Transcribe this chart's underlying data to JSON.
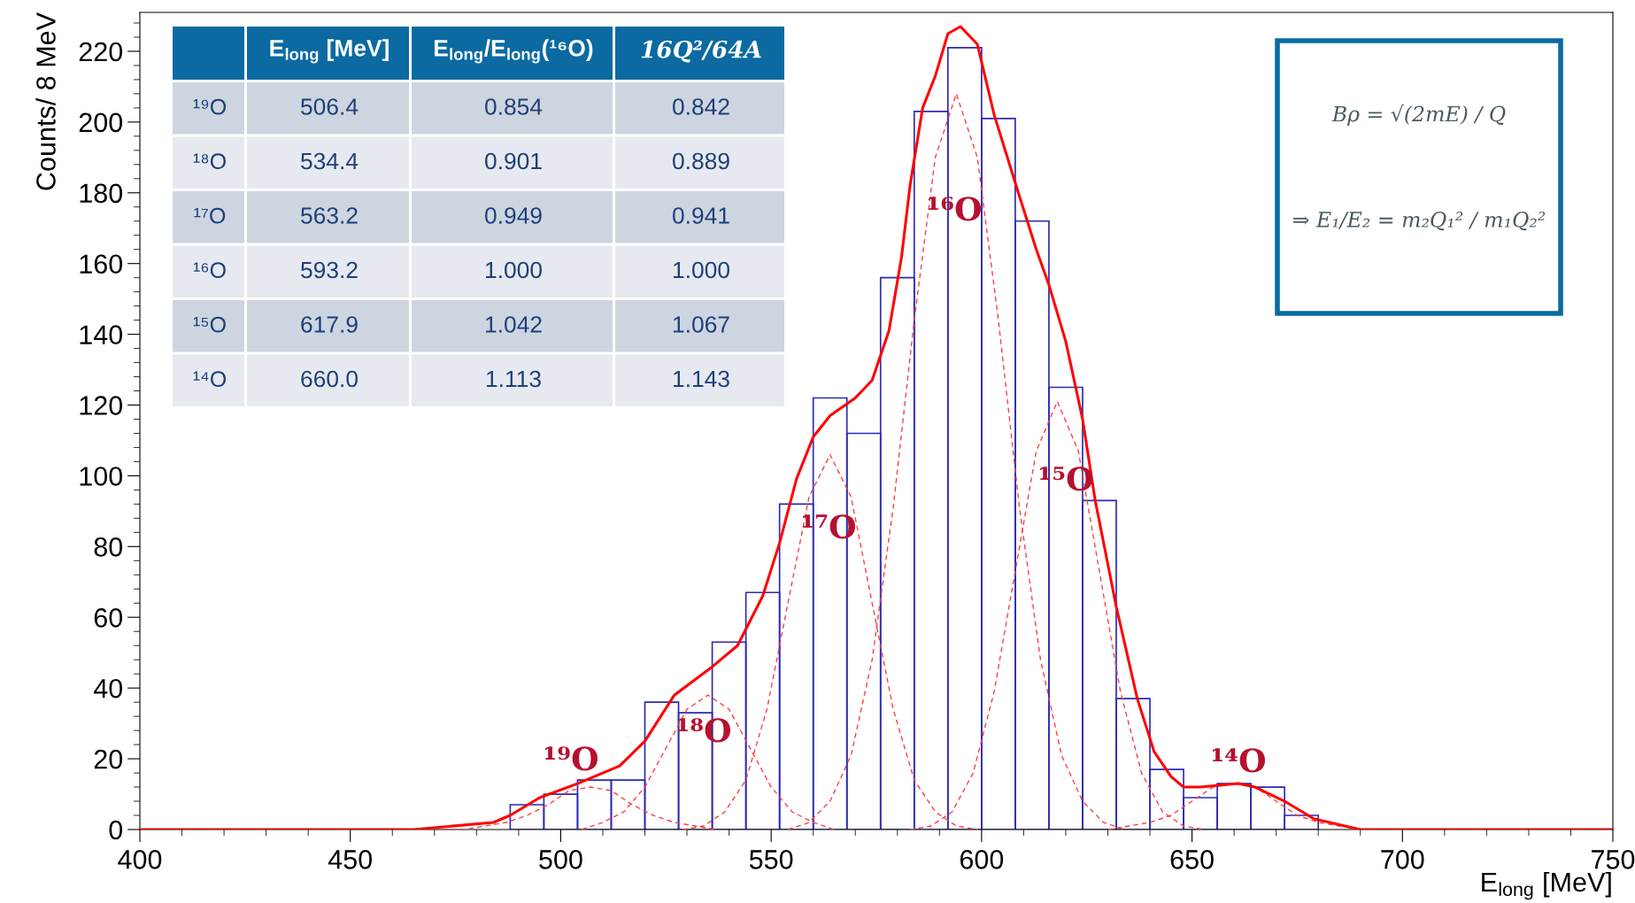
{
  "chart_data": {
    "type": "histogram",
    "xlabel": "E$_{long}$ [MeV]",
    "ylabel": "Counts/ 8 MeV",
    "bins": [
      488,
      496,
      504,
      512,
      520,
      528,
      536,
      544,
      552,
      560,
      568,
      576,
      584,
      592,
      600,
      608,
      616,
      624,
      632,
      640,
      648,
      656,
      664,
      672,
      680
    ],
    "series": [
      {
        "color": "#2a2ab4",
        "values": [
          7,
          10,
          14,
          14,
          36,
          33,
          53,
          67,
          92,
          122,
          112,
          156,
          203,
          221,
          201,
          172,
          125,
          93,
          37,
          17,
          9,
          13,
          12,
          4
        ]
      },
      {
        "type": "line",
        "color": "#ff0000",
        "line_style": "solid",
        "x": [
          400,
          465,
          484,
          488,
          495,
          504,
          514,
          520,
          527,
          536,
          542,
          548,
          552,
          556,
          560,
          564,
          570,
          574,
          578,
          581,
          583,
          586,
          589,
          592,
          595,
          599,
          603,
          609,
          613,
          616,
          620,
          624,
          627,
          632,
          637,
          641,
          645,
          648,
          652,
          661,
          665,
          672,
          679,
          690,
          750
        ],
        "values": [
          0,
          0,
          2,
          4,
          9,
          13,
          18,
          25,
          38,
          46,
          52,
          66,
          81,
          99,
          111,
          117,
          122,
          127,
          141,
          162,
          182,
          204,
          213,
          225,
          227,
          222,
          202,
          179,
          164,
          154,
          138,
          116,
          93,
          63,
          37,
          22,
          15,
          12,
          12,
          13,
          12,
          8,
          3,
          0,
          0
        ]
      },
      {
        "type": "line",
        "color": "#ff4040",
        "line_style": "dashed",
        "x": [
          472,
          477,
          482,
          487,
          492,
          497,
          502,
          507,
          512,
          517,
          522,
          527,
          532,
          537
        ],
        "values": [
          0,
          0,
          1,
          2,
          4,
          7,
          11,
          12,
          11,
          7,
          4,
          2,
          1,
          0
        ]
      },
      {
        "type": "line",
        "color": "#ff4040",
        "line_style": "dashed",
        "x": [
          505,
          510,
          515,
          520,
          525,
          530,
          535,
          540,
          545,
          550,
          555,
          560,
          565
        ],
        "values": [
          0,
          2,
          5,
          12,
          23,
          34,
          38,
          34,
          23,
          12,
          5,
          2,
          0
        ]
      },
      {
        "type": "line",
        "color": "#ff4040",
        "line_style": "dashed",
        "x": [
          529,
          534,
          539,
          544,
          549,
          554,
          559,
          564,
          569,
          574,
          579,
          584,
          589,
          594,
          599
        ],
        "values": [
          0,
          1,
          5,
          14,
          34,
          64,
          94,
          106,
          94,
          64,
          34,
          14,
          5,
          1,
          0
        ]
      },
      {
        "type": "line",
        "color": "#ff4040",
        "line_style": "dashed",
        "x": [
          554,
          559,
          564,
          569,
          574,
          579,
          584,
          589,
          594,
          599,
          604,
          609,
          614,
          619,
          624,
          629,
          634
        ],
        "values": [
          0,
          2,
          8,
          21,
          48,
          91,
          144,
          190,
          208,
          190,
          144,
          91,
          48,
          21,
          8,
          2,
          0
        ]
      },
      {
        "type": "line",
        "color": "#ff4040",
        "line_style": "dashed",
        "x": [
          583,
          588,
          593,
          598,
          603,
          608,
          613,
          618,
          623,
          628,
          633,
          638,
          643,
          648,
          653
        ],
        "values": [
          0,
          1,
          5,
          16,
          39,
          73,
          107,
          121,
          107,
          73,
          39,
          16,
          5,
          1,
          0
        ]
      },
      {
        "type": "line",
        "color": "#ff4040",
        "line_style": "dashed",
        "x": [
          630,
          635,
          640,
          645,
          650,
          655,
          660,
          665,
          670,
          675,
          680,
          685,
          690,
          695
        ],
        "values": [
          0,
          1,
          2,
          4,
          8,
          12,
          13,
          12,
          8,
          4,
          2,
          1,
          0,
          0
        ]
      }
    ],
    "xlim": [
      400,
      750
    ],
    "xticks": [
      400,
      450,
      500,
      550,
      600,
      650,
      700,
      750
    ],
    "ylim": [
      0,
      231
    ],
    "yticks": [
      0,
      20,
      40,
      60,
      80,
      100,
      120,
      140,
      160,
      180,
      200,
      220
    ],
    "grid": false,
    "legend": false,
    "annotations": [
      "¹⁹O",
      "¹⁸O",
      "¹⁷O",
      "¹⁶O",
      "¹⁵O",
      "¹⁴O",
      "E$_{long}$ [MeV]",
      "E$_{long}$/E$_{long}$(¹⁶O)",
      "16Q²/64A",
      "¹⁹O",
      "506.4",
      "0.854",
      "0.842",
      "¹⁸O",
      "534.4",
      "0.901",
      "0.889",
      "¹⁷O",
      "563.2",
      "0.949",
      "0.941",
      "¹⁶O",
      "593.2",
      "1.000",
      "1.000",
      "¹⁵O",
      "617.9",
      "1.042",
      "1.067",
      "¹⁴O",
      "660.0",
      "1.113",
      "1.143",
      "Bρ = √(2mE) / Q",
      "⇒ E₁/E₂ = m₂Q₁² / m₁Q₂²"
    ]
  }
}
